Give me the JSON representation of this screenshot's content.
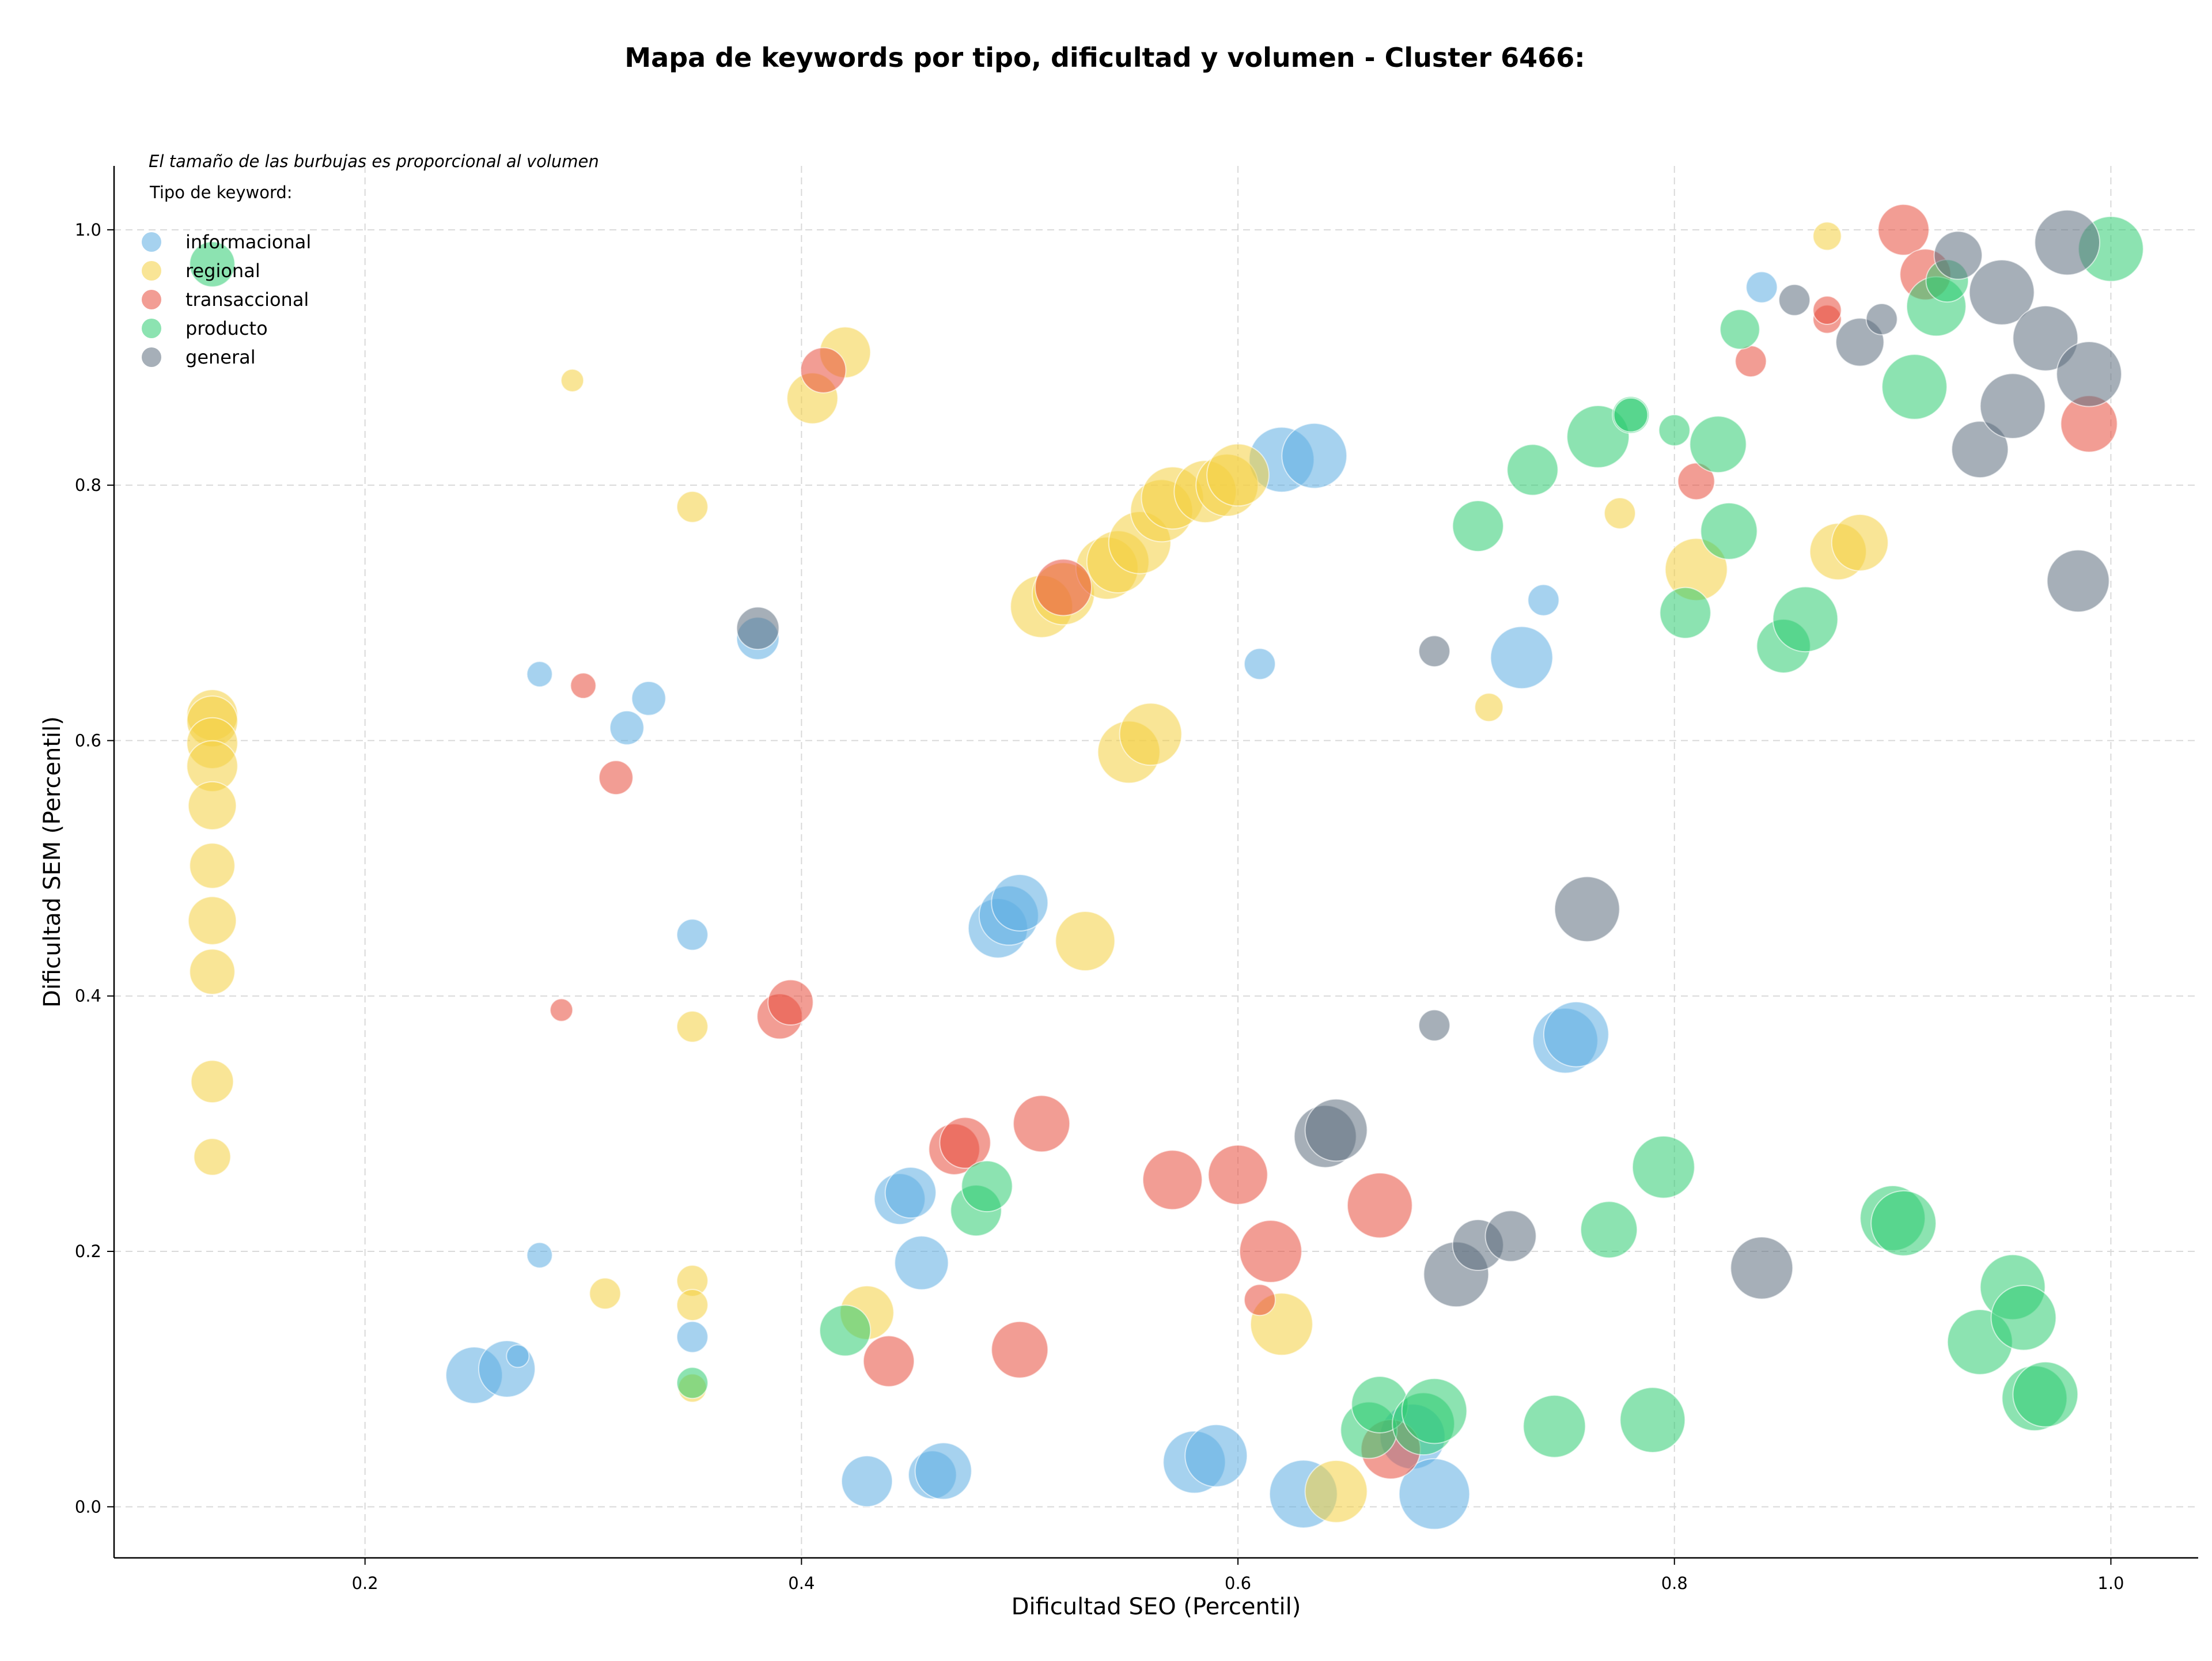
{
  "chart_data": {
    "type": "scatter",
    "title": "Mapa de keywords por tipo, dificultad y volumen - Cluster 6466:",
    "xlabel": "Dificultad SEO (Percentil)",
    "ylabel": "Dificultad SEM (Percentil)",
    "note": "El tamaño de las burbujas es proporcional al volumen",
    "xlim": [
      0.085,
      1.04
    ],
    "ylim": [
      -0.04,
      1.05
    ],
    "x_ticks": [
      "0.2",
      "0.4",
      "0.6",
      "0.8",
      "1.0"
    ],
    "y_ticks": [
      "0.0",
      "0.2",
      "0.4",
      "0.6",
      "0.8",
      "1.0"
    ],
    "grid": true,
    "legend": {
      "title": "Tipo de keyword:",
      "position": "top-left"
    },
    "series": [
      {
        "name": "informacional",
        "color": "#5DADE2",
        "points": [
          [
            0.25,
            0.103,
            20
          ],
          [
            0.265,
            0.108,
            20
          ],
          [
            0.27,
            0.118,
            8
          ],
          [
            0.28,
            0.197,
            9
          ],
          [
            0.28,
            0.652,
            9
          ],
          [
            0.32,
            0.61,
            12
          ],
          [
            0.33,
            0.633,
            12
          ],
          [
            0.35,
            0.448,
            11
          ],
          [
            0.35,
            0.133,
            11
          ],
          [
            0.38,
            0.68,
            15
          ],
          [
            0.43,
            0.02,
            18
          ],
          [
            0.445,
            0.241,
            18
          ],
          [
            0.45,
            0.246,
            18
          ],
          [
            0.455,
            0.191,
            19
          ],
          [
            0.46,
            0.025,
            17
          ],
          [
            0.465,
            0.028,
            20
          ],
          [
            0.49,
            0.453,
            21
          ],
          [
            0.495,
            0.463,
            21
          ],
          [
            0.5,
            0.473,
            20
          ],
          [
            0.58,
            0.035,
            22
          ],
          [
            0.59,
            0.04,
            22
          ],
          [
            0.62,
            0.82,
            23
          ],
          [
            0.635,
            0.823,
            23
          ],
          [
            0.63,
            0.01,
            24
          ],
          [
            0.61,
            0.66,
            11
          ],
          [
            0.68,
            0.055,
            23
          ],
          [
            0.69,
            0.01,
            25
          ],
          [
            0.74,
            0.71,
            11
          ],
          [
            0.73,
            0.665,
            22
          ],
          [
            0.75,
            0.365,
            23
          ],
          [
            0.755,
            0.37,
            23
          ],
          [
            0.84,
            0.955,
            11
          ]
        ]
      },
      {
        "name": "regional",
        "color": "#F4D03F",
        "points": [
          [
            0.13,
            0.62,
            18
          ],
          [
            0.13,
            0.615,
            18
          ],
          [
            0.13,
            0.598,
            18
          ],
          [
            0.13,
            0.58,
            18
          ],
          [
            0.13,
            0.549,
            17
          ],
          [
            0.13,
            0.502,
            16
          ],
          [
            0.13,
            0.459,
            17
          ],
          [
            0.13,
            0.419,
            16
          ],
          [
            0.13,
            0.333,
            15
          ],
          [
            0.13,
            0.274,
            13
          ],
          [
            0.295,
            0.882,
            8
          ],
          [
            0.31,
            0.167,
            11
          ],
          [
            0.35,
            0.783,
            11
          ],
          [
            0.35,
            0.376,
            11
          ],
          [
            0.35,
            0.177,
            11
          ],
          [
            0.35,
            0.158,
            11
          ],
          [
            0.35,
            0.093,
            10
          ],
          [
            0.405,
            0.868,
            18
          ],
          [
            0.42,
            0.904,
            18
          ],
          [
            0.43,
            0.152,
            19
          ],
          [
            0.51,
            0.705,
            22
          ],
          [
            0.52,
            0.715,
            22
          ],
          [
            0.53,
            0.443,
            21
          ],
          [
            0.54,
            0.735,
            22
          ],
          [
            0.545,
            0.74,
            22
          ],
          [
            0.55,
            0.591,
            22
          ],
          [
            0.555,
            0.755,
            22
          ],
          [
            0.56,
            0.605,
            22
          ],
          [
            0.565,
            0.78,
            22
          ],
          [
            0.57,
            0.79,
            22
          ],
          [
            0.585,
            0.795,
            22
          ],
          [
            0.595,
            0.8,
            22
          ],
          [
            0.6,
            0.808,
            22
          ],
          [
            0.62,
            0.143,
            22
          ],
          [
            0.645,
            0.012,
            22
          ],
          [
            0.715,
            0.626,
            10
          ],
          [
            0.775,
            0.778,
            11
          ],
          [
            0.81,
            0.734,
            22
          ],
          [
            0.87,
            0.995,
            10
          ],
          [
            0.875,
            0.748,
            20
          ],
          [
            0.885,
            0.755,
            20
          ]
        ]
      },
      {
        "name": "transaccional",
        "color": "#E74C3C",
        "points": [
          [
            0.29,
            0.389,
            8
          ],
          [
            0.3,
            0.643,
            9
          ],
          [
            0.315,
            0.571,
            12
          ],
          [
            0.39,
            0.384,
            16
          ],
          [
            0.395,
            0.395,
            16
          ],
          [
            0.41,
            0.89,
            16
          ],
          [
            0.44,
            0.114,
            18
          ],
          [
            0.47,
            0.28,
            18
          ],
          [
            0.475,
            0.285,
            18
          ],
          [
            0.5,
            0.123,
            20
          ],
          [
            0.51,
            0.3,
            20
          ],
          [
            0.52,
            0.72,
            20
          ],
          [
            0.57,
            0.256,
            21
          ],
          [
            0.6,
            0.26,
            21
          ],
          [
            0.61,
            0.162,
            11
          ],
          [
            0.615,
            0.2,
            22
          ],
          [
            0.665,
            0.236,
            23
          ],
          [
            0.67,
            0.045,
            21
          ],
          [
            0.81,
            0.803,
            13
          ],
          [
            0.835,
            0.897,
            11
          ],
          [
            0.87,
            0.93,
            10
          ],
          [
            0.87,
            0.937,
            10
          ],
          [
            0.905,
            1.0,
            18
          ],
          [
            0.915,
            0.965,
            18
          ],
          [
            0.99,
            0.848,
            20
          ]
        ]
      },
      {
        "name": "producto",
        "color": "#2ECC71",
        "points": [
          [
            0.13,
            0.973,
            16
          ],
          [
            0.35,
            0.097,
            11
          ],
          [
            0.42,
            0.138,
            18
          ],
          [
            0.48,
            0.232,
            18
          ],
          [
            0.485,
            0.251,
            18
          ],
          [
            0.66,
            0.06,
            20
          ],
          [
            0.665,
            0.08,
            20
          ],
          [
            0.685,
            0.065,
            22
          ],
          [
            0.69,
            0.075,
            23
          ],
          [
            0.71,
            0.768,
            18
          ],
          [
            0.735,
            0.812,
            18
          ],
          [
            0.745,
            0.063,
            22
          ],
          [
            0.77,
            0.217,
            20
          ],
          [
            0.765,
            0.838,
            22
          ],
          [
            0.78,
            0.855,
            13
          ],
          [
            0.78,
            0.855,
            12
          ],
          [
            0.79,
            0.068,
            23
          ],
          [
            0.795,
            0.266,
            22
          ],
          [
            0.8,
            0.843,
            11
          ],
          [
            0.805,
            0.7,
            18
          ],
          [
            0.82,
            0.832,
            20
          ],
          [
            0.825,
            0.764,
            20
          ],
          [
            0.83,
            0.922,
            14
          ],
          [
            0.85,
            0.674,
            19
          ],
          [
            0.86,
            0.695,
            23
          ],
          [
            0.9,
            0.226,
            23
          ],
          [
            0.905,
            0.222,
            23
          ],
          [
            0.91,
            0.877,
            23
          ],
          [
            0.92,
            0.94,
            21
          ],
          [
            0.925,
            0.96,
            15
          ],
          [
            0.94,
            0.129,
            23
          ],
          [
            0.955,
            0.172,
            23
          ],
          [
            0.96,
            0.148,
            23
          ],
          [
            0.965,
            0.085,
            23
          ],
          [
            0.97,
            0.088,
            23
          ],
          [
            1.0,
            0.985,
            23
          ]
        ]
      },
      {
        "name": "general",
        "color": "#5D6D7E",
        "points": [
          [
            0.38,
            0.688,
            15
          ],
          [
            0.64,
            0.29,
            22
          ],
          [
            0.645,
            0.295,
            22
          ],
          [
            0.69,
            0.67,
            11
          ],
          [
            0.69,
            0.377,
            11
          ],
          [
            0.7,
            0.182,
            23
          ],
          [
            0.71,
            0.205,
            18
          ],
          [
            0.725,
            0.212,
            18
          ],
          [
            0.76,
            0.468,
            23
          ],
          [
            0.84,
            0.187,
            22
          ],
          [
            0.855,
            0.945,
            11
          ],
          [
            0.885,
            0.912,
            17
          ],
          [
            0.895,
            0.93,
            11
          ],
          [
            0.93,
            0.98,
            17
          ],
          [
            0.94,
            0.828,
            20
          ],
          [
            0.95,
            0.951,
            23
          ],
          [
            0.955,
            0.862,
            23
          ],
          [
            0.97,
            0.915,
            23
          ],
          [
            0.98,
            0.99,
            23
          ],
          [
            0.985,
            0.725,
            22
          ],
          [
            0.99,
            0.887,
            23
          ]
        ]
      }
    ]
  }
}
